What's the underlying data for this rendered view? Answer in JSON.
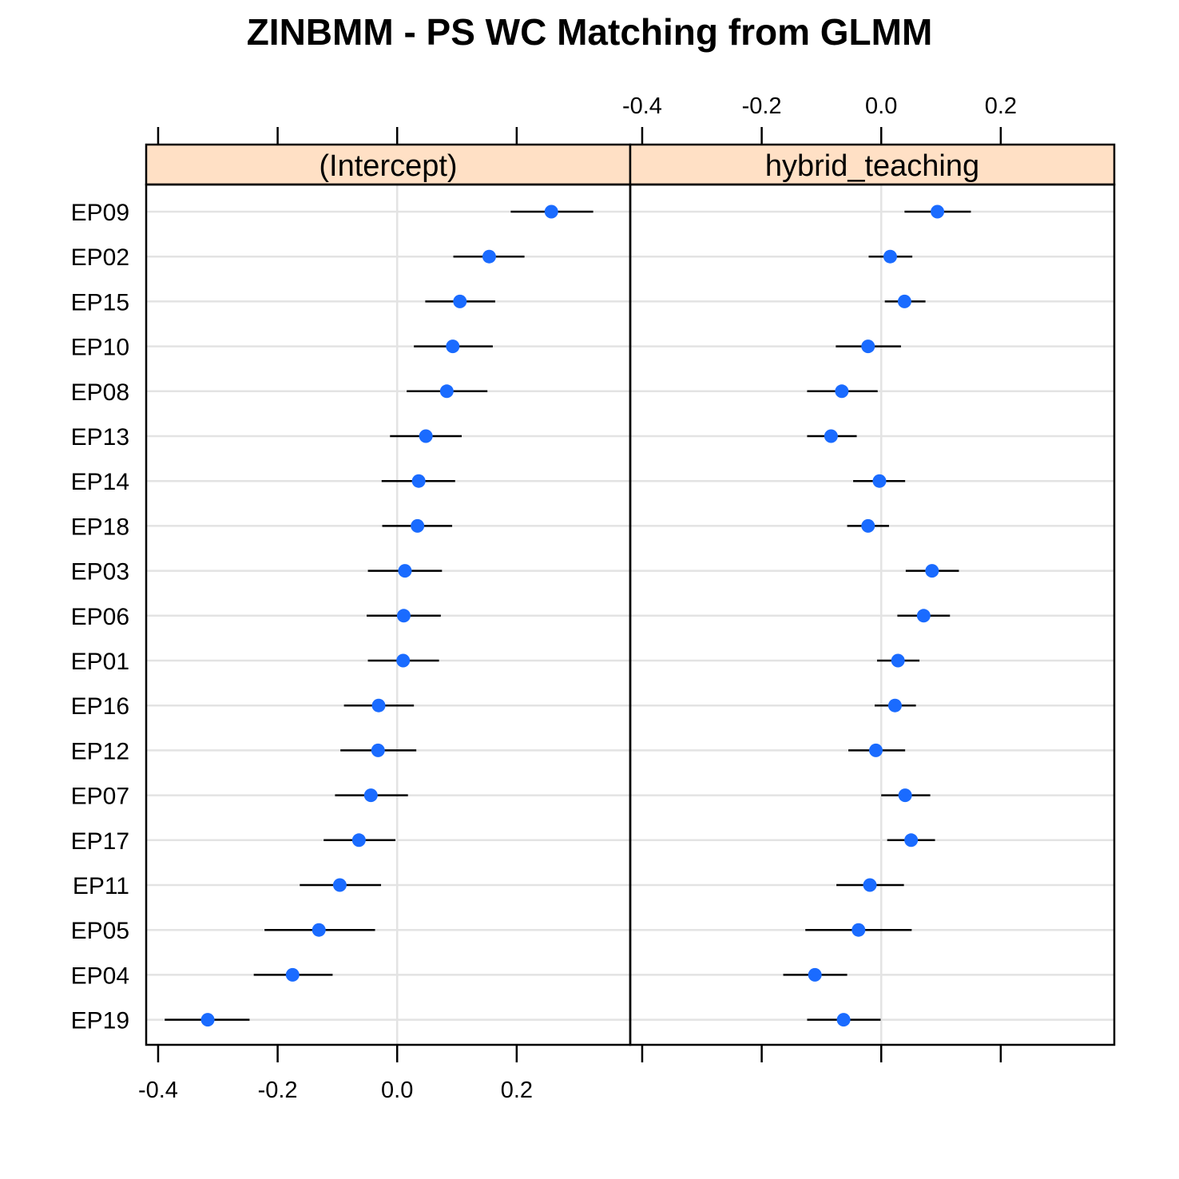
{
  "chart_data": {
    "type": "scatter",
    "title": "ZINBMM - PS WC Matching from GLMM",
    "xlabel": "",
    "ylabel": "",
    "xlim": [
      -0.42,
      0.39
    ],
    "x_ticks": [
      -0.4,
      -0.2,
      0.0,
      0.2
    ],
    "x_tick_labels": [
      "-0.4",
      "-0.2",
      "0.0",
      "0.2"
    ],
    "grid": true,
    "strip_color": "#FFE0C5",
    "point_color": "#1A6BFF",
    "categories": [
      "EP09",
      "EP02",
      "EP15",
      "EP10",
      "EP08",
      "EP13",
      "EP14",
      "EP18",
      "EP03",
      "EP06",
      "EP01",
      "EP16",
      "EP12",
      "EP07",
      "EP17",
      "EP11",
      "EP05",
      "EP04",
      "EP19"
    ],
    "panels": [
      {
        "name": "(Intercept)",
        "points": [
          {
            "label": "EP09",
            "x": 0.258,
            "lower": 0.19,
            "upper": 0.328
          },
          {
            "label": "EP02",
            "x": 0.154,
            "lower": 0.094,
            "upper": 0.213
          },
          {
            "label": "EP15",
            "x": 0.105,
            "lower": 0.047,
            "upper": 0.164
          },
          {
            "label": "EP10",
            "x": 0.093,
            "lower": 0.028,
            "upper": 0.16
          },
          {
            "label": "EP08",
            "x": 0.083,
            "lower": 0.016,
            "upper": 0.151
          },
          {
            "label": "EP13",
            "x": 0.048,
            "lower": -0.012,
            "upper": 0.108
          },
          {
            "label": "EP14",
            "x": 0.036,
            "lower": -0.026,
            "upper": 0.097
          },
          {
            "label": "EP18",
            "x": 0.034,
            "lower": -0.025,
            "upper": 0.092
          },
          {
            "label": "EP03",
            "x": 0.013,
            "lower": -0.049,
            "upper": 0.075
          },
          {
            "label": "EP06",
            "x": 0.011,
            "lower": -0.051,
            "upper": 0.073
          },
          {
            "label": "EP01",
            "x": 0.01,
            "lower": -0.049,
            "upper": 0.07
          },
          {
            "label": "EP16",
            "x": -0.031,
            "lower": -0.089,
            "upper": 0.028
          },
          {
            "label": "EP12",
            "x": -0.032,
            "lower": -0.095,
            "upper": 0.032
          },
          {
            "label": "EP07",
            "x": -0.044,
            "lower": -0.104,
            "upper": 0.018
          },
          {
            "label": "EP17",
            "x": -0.064,
            "lower": -0.123,
            "upper": -0.003
          },
          {
            "label": "EP11",
            "x": -0.096,
            "lower": -0.163,
            "upper": -0.027
          },
          {
            "label": "EP05",
            "x": -0.131,
            "lower": -0.222,
            "upper": -0.037
          },
          {
            "label": "EP04",
            "x": -0.175,
            "lower": -0.24,
            "upper": -0.108
          },
          {
            "label": "EP19",
            "x": -0.317,
            "lower": -0.389,
            "upper": -0.247
          }
        ]
      },
      {
        "name": "hybrid_teaching",
        "points": [
          {
            "label": "EP09",
            "x": 0.094,
            "lower": 0.039,
            "upper": 0.15
          },
          {
            "label": "EP02",
            "x": 0.015,
            "lower": -0.021,
            "upper": 0.052
          },
          {
            "label": "EP15",
            "x": 0.039,
            "lower": 0.006,
            "upper": 0.074
          },
          {
            "label": "EP10",
            "x": -0.022,
            "lower": -0.076,
            "upper": 0.033
          },
          {
            "label": "EP08",
            "x": -0.066,
            "lower": -0.124,
            "upper": -0.006
          },
          {
            "label": "EP13",
            "x": -0.084,
            "lower": -0.124,
            "upper": -0.041
          },
          {
            "label": "EP14",
            "x": -0.003,
            "lower": -0.047,
            "upper": 0.04
          },
          {
            "label": "EP18",
            "x": -0.022,
            "lower": -0.057,
            "upper": 0.013
          },
          {
            "label": "EP03",
            "x": 0.085,
            "lower": 0.041,
            "upper": 0.13
          },
          {
            "label": "EP06",
            "x": 0.071,
            "lower": 0.027,
            "upper": 0.115
          },
          {
            "label": "EP01",
            "x": 0.028,
            "lower": -0.007,
            "upper": 0.064
          },
          {
            "label": "EP16",
            "x": 0.023,
            "lower": -0.011,
            "upper": 0.058
          },
          {
            "label": "EP12",
            "x": -0.009,
            "lower": -0.055,
            "upper": 0.04
          },
          {
            "label": "EP07",
            "x": 0.04,
            "lower": 0.0,
            "upper": 0.082
          },
          {
            "label": "EP17",
            "x": 0.05,
            "lower": 0.01,
            "upper": 0.09
          },
          {
            "label": "EP11",
            "x": -0.019,
            "lower": -0.075,
            "upper": 0.038
          },
          {
            "label": "EP05",
            "x": -0.038,
            "lower": -0.127,
            "upper": 0.051
          },
          {
            "label": "EP04",
            "x": -0.111,
            "lower": -0.164,
            "upper": -0.057
          },
          {
            "label": "EP19",
            "x": -0.063,
            "lower": -0.124,
            "upper": -0.001
          }
        ]
      }
    ]
  }
}
